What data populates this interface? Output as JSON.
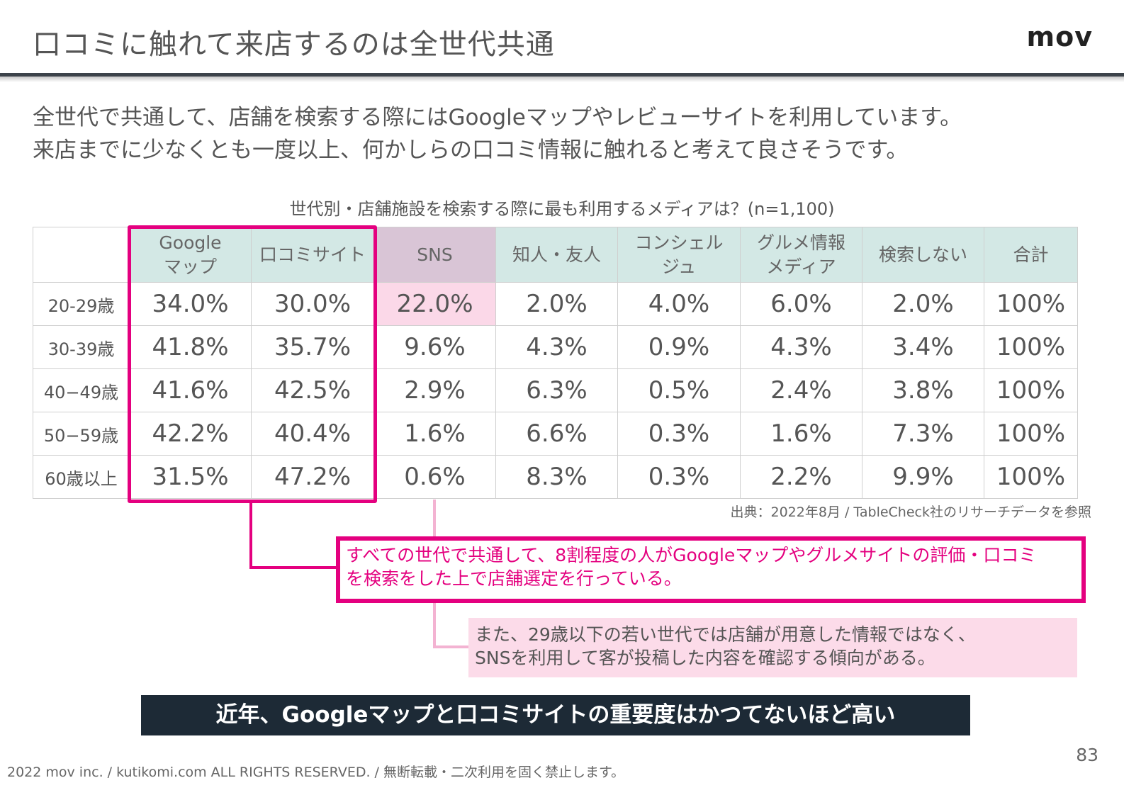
{
  "header": {
    "title": "口コミに触れて来店するのは全世代共通",
    "logo": "mov"
  },
  "lead": {
    "line1": "全世代で共通して、店舗を検索する際にはGoogleマップやレビューサイトを利用しています。",
    "line2": "来店までに少なくとも一度以上、何かしらの口コミ情報に触れると考えて良さそうです。"
  },
  "table": {
    "title": "世代別・店舗施設を検索する際に最も利用するメディアは？(n=1,100)",
    "headers": [
      {
        "line1": "Google",
        "line2": "マップ"
      },
      {
        "line1": "口コミサイト",
        "line2": ""
      },
      {
        "line1": "SNS",
        "line2": ""
      },
      {
        "line1": "知人・友人",
        "line2": ""
      },
      {
        "line1": "コンシェル",
        "line2": "ジュ"
      },
      {
        "line1": "グルメ情報",
        "line2": "メディア"
      },
      {
        "line1": "検索しない",
        "line2": ""
      },
      {
        "line1": "合計",
        "line2": ""
      }
    ],
    "rows": [
      {
        "label": "20-29歳",
        "values": [
          "34.0%",
          "30.0%",
          "22.0%",
          "2.0%",
          "4.0%",
          "6.0%",
          "2.0%",
          "100%"
        ]
      },
      {
        "label": "30-39歳",
        "values": [
          "41.8%",
          "35.7%",
          "9.6%",
          "4.3%",
          "0.9%",
          "4.3%",
          "3.4%",
          "100%"
        ]
      },
      {
        "label": "40−49歳",
        "values": [
          "41.6%",
          "42.5%",
          "2.9%",
          "6.3%",
          "0.5%",
          "2.4%",
          "3.8%",
          "100%"
        ]
      },
      {
        "label": "50−59歳",
        "values": [
          "42.2%",
          "40.4%",
          "1.6%",
          "6.6%",
          "0.3%",
          "1.6%",
          "7.3%",
          "100%"
        ]
      },
      {
        "label": "60歳以上",
        "values": [
          "31.5%",
          "47.2%",
          "0.6%",
          "8.3%",
          "0.3%",
          "2.2%",
          "9.9%",
          "100%"
        ]
      }
    ],
    "source": "出典：2022年8月 / TableCheck社のリサーチデータを参照"
  },
  "callout": {
    "line1": "すべての世代で共通して、8割程度の人がGoogleマップやグルメサイトの評価・口コミ",
    "line2": "を検索をした上で店舗選定を行っている。"
  },
  "note": {
    "line1": "また、29歳以下の若い世代では店舗が用意した情報ではなく、",
    "line2": "SNSを利用して客が投稿した内容を確認する傾向がある。"
  },
  "banner": "近年、Googleマップと口コミサイトの重要度はかつてないほど高い",
  "page_number": "83",
  "footer": "2022 mov inc. / kutikomi.com ALL RIGHTS RESERVED. / 無断転載・二次利用を固く禁止します。",
  "colors": {
    "accent": "#e4007f",
    "header_cell": "#d3e8e5",
    "sns_header": "#d9c5d6",
    "sns_highlight": "#fbd8e8",
    "banner_bg": "#1d2a36"
  }
}
